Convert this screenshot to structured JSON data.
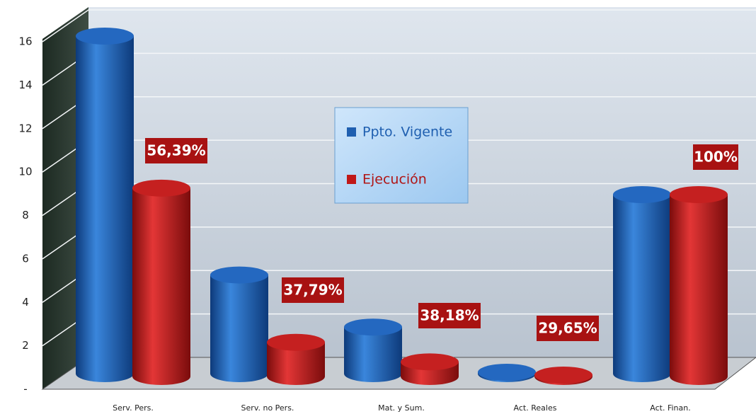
{
  "chart_data": {
    "type": "bar3d",
    "categories": [
      "Serv. Pers.",
      "Serv. no Pers.",
      "Mat. y Sum.",
      "Act. Reales",
      "Act. Finan."
    ],
    "series": [
      {
        "name": "Ppto. Vigente",
        "color": "#1f5fb0",
        "values": [
          16.0,
          5.0,
          2.6,
          0.5,
          8.7
        ]
      },
      {
        "name": "Ejecución",
        "color": "#c01818",
        "values": [
          9.0,
          1.9,
          1.0,
          0.15,
          8.7
        ]
      }
    ],
    "percentages": [
      56.39,
      37.79,
      38.18,
      29.65,
      100
    ],
    "percentage_labels": [
      "56,39%",
      "37,79%",
      "38,18%",
      "29,65%",
      "100%"
    ],
    "ylim": [
      0,
      16
    ],
    "yticks": [
      {
        "value": 0,
        "label": "-"
      },
      2,
      4,
      6,
      8,
      10,
      12,
      14,
      16
    ],
    "grid": true,
    "legend": "center"
  }
}
